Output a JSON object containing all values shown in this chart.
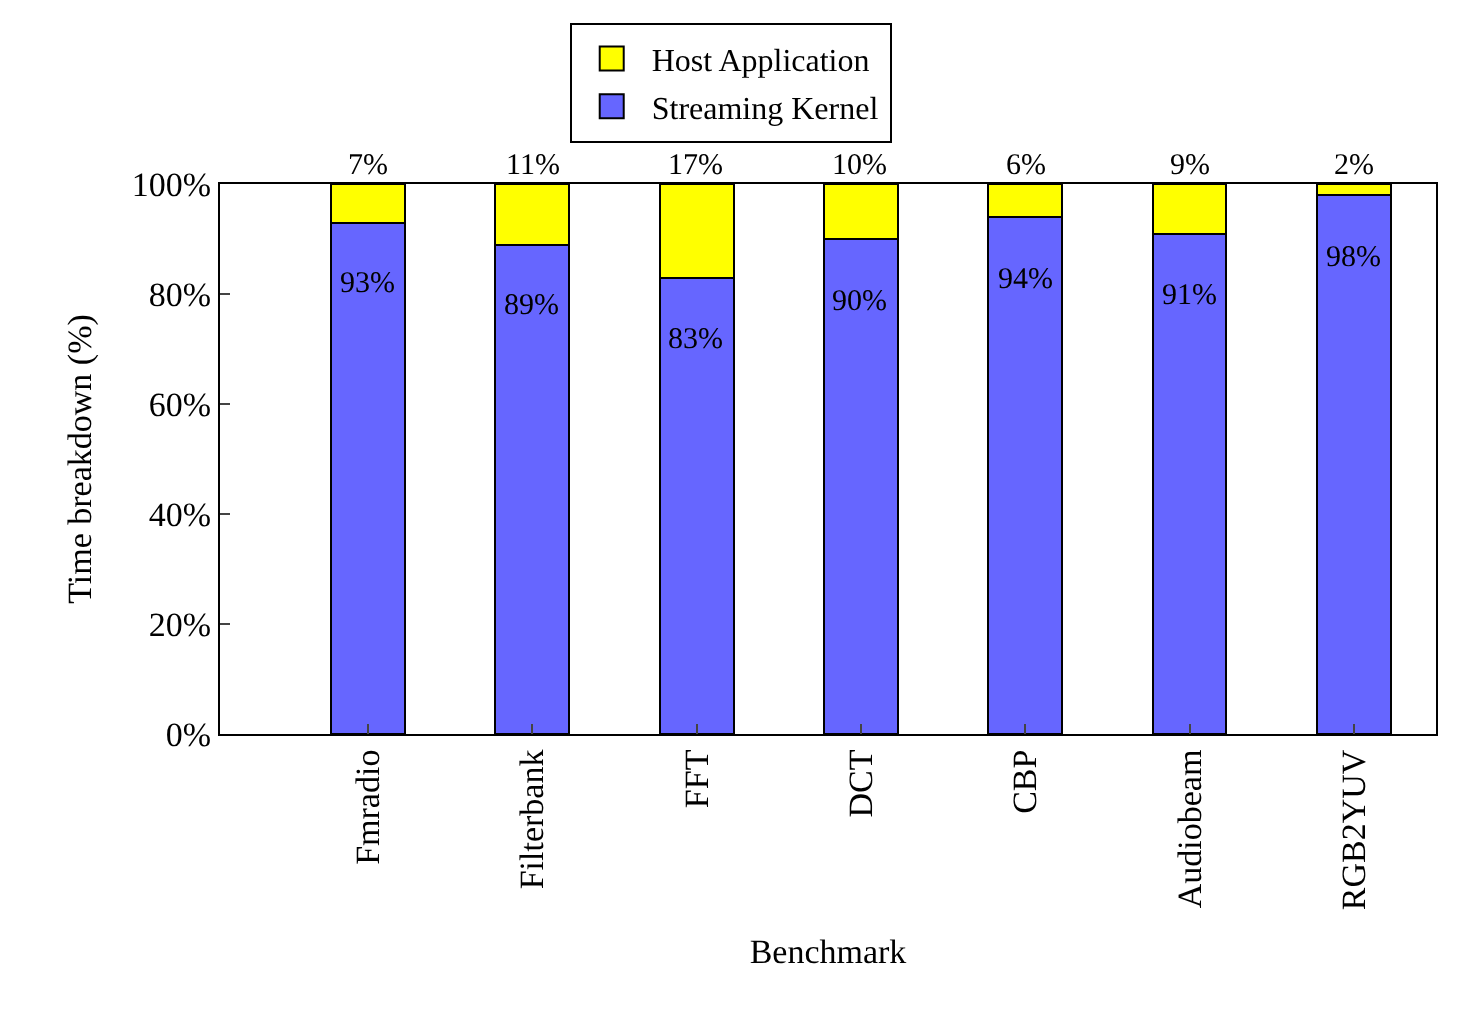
{
  "chart_data": {
    "type": "bar",
    "stacked": true,
    "xlabel": "Benchmark",
    "ylabel": "Time breakdown (%)",
    "categories": [
      "Fmradio",
      "Filterbank",
      "FFT",
      "DCT",
      "CBP",
      "Audiobeam",
      "RGB2YUV"
    ],
    "series": [
      {
        "name": "Streaming Kernel",
        "color": "#6666ff",
        "values": [
          93,
          89,
          83,
          90,
          94,
          91,
          98
        ],
        "value_labels": [
          "93%",
          "89%",
          "83%",
          "90%",
          "94%",
          "91%",
          "98%"
        ]
      },
      {
        "name": "Host Application",
        "color": "#ffff00",
        "values": [
          7,
          11,
          17,
          10,
          6,
          9,
          2
        ],
        "value_labels": [
          "7%",
          "11%",
          "17%",
          "10%",
          "6%",
          "9%",
          "2%"
        ]
      }
    ],
    "ylim": [
      0,
      100
    ],
    "yticks": [
      {
        "value": 0,
        "label": "0%"
      },
      {
        "value": 20,
        "label": "20%"
      },
      {
        "value": 40,
        "label": "40%"
      },
      {
        "value": 60,
        "label": "60%"
      },
      {
        "value": 80,
        "label": "80%"
      },
      {
        "value": 100,
        "label": "100%"
      }
    ],
    "legend": "top"
  }
}
